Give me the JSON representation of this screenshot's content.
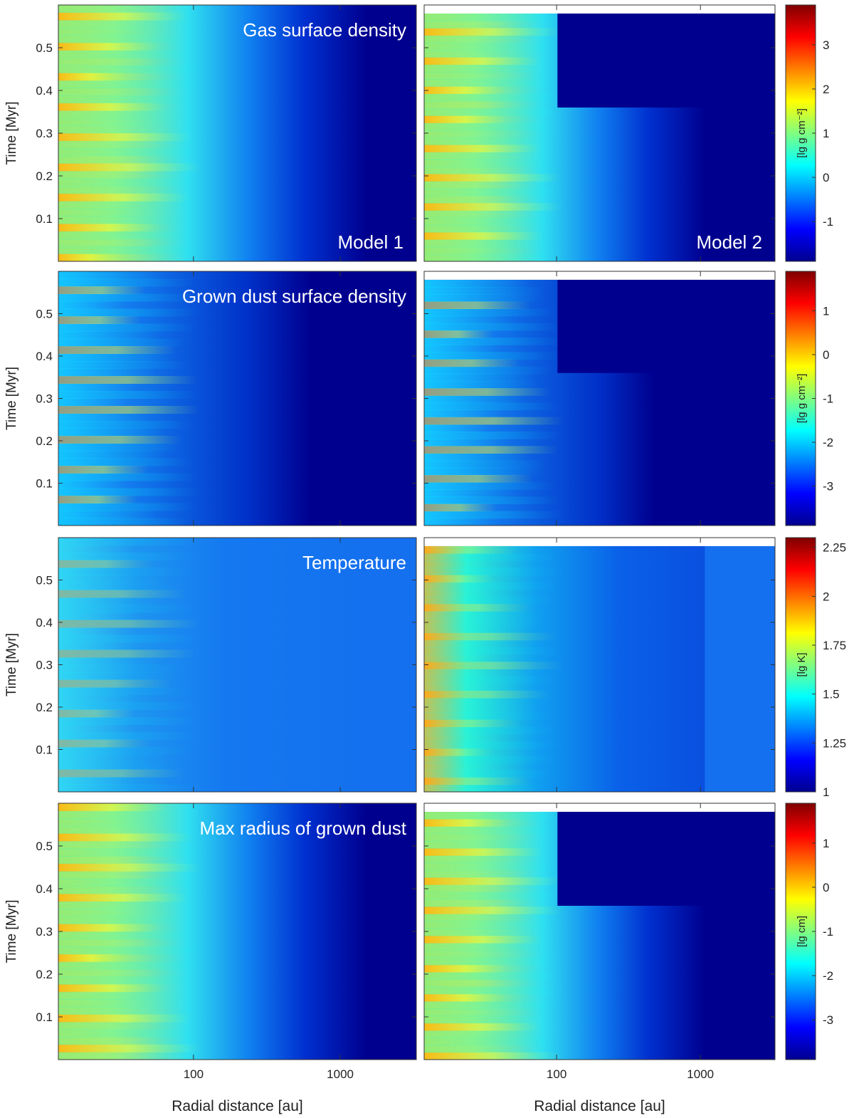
{
  "figure": {
    "xlabel": "Radial distance [au]",
    "ylabel": "Time [Myr]",
    "x_ticks": [
      "100",
      "1000"
    ],
    "y_ticks": [
      "0.1",
      "0.2",
      "0.3",
      "0.4",
      "0.5"
    ],
    "model_labels": [
      "Model 1",
      "Model 2"
    ]
  },
  "chart_data": [
    {
      "type": "heatmap",
      "title": "Gas surface density",
      "colorbar_label": "[lg g cm⁻²]",
      "colorbar_range": [
        -1.9,
        3.9
      ],
      "colorbar_ticks": [
        "-1",
        "0",
        "1",
        "2",
        "3"
      ],
      "colorbar_tick_values": [
        -1,
        0,
        1,
        2,
        3
      ],
      "xscale": "log",
      "xlim": [
        12,
        3300
      ],
      "ylim": [
        0.0,
        0.6
      ],
      "model_end_time": [
        0.6,
        0.58
      ]
    },
    {
      "type": "heatmap",
      "title": "Grown dust surface density",
      "colorbar_label": "[lg g cm⁻²]",
      "colorbar_range": [
        -3.9,
        1.9
      ],
      "colorbar_ticks": [
        "-3",
        "-2",
        "-1",
        "0",
        "1"
      ],
      "colorbar_tick_values": [
        -3,
        -2,
        -1,
        0,
        1
      ],
      "xscale": "log",
      "xlim": [
        12,
        3300
      ],
      "ylim": [
        0.0,
        0.6
      ],
      "model_end_time": [
        0.6,
        0.58
      ]
    },
    {
      "type": "heatmap",
      "title": "Temperature",
      "colorbar_label": "[lg K]",
      "colorbar_range": [
        1.0,
        2.3
      ],
      "colorbar_ticks": [
        "1",
        "1.25",
        "1.5",
        "1.75",
        "2",
        "2.25"
      ],
      "colorbar_tick_values": [
        1,
        1.25,
        1.5,
        1.75,
        2,
        2.25
      ],
      "xscale": "log",
      "xlim": [
        12,
        3300
      ],
      "ylim": [
        0.0,
        0.6
      ],
      "model_end_time": [
        0.6,
        0.58
      ]
    },
    {
      "type": "heatmap",
      "title": "Max radius of grown dust",
      "colorbar_label": "[lg cm]",
      "colorbar_range": [
        -3.9,
        1.9
      ],
      "colorbar_ticks": [
        "-3",
        "-2",
        "-1",
        "0",
        "1"
      ],
      "colorbar_tick_values": [
        -3,
        -2,
        -1,
        0,
        1
      ],
      "xscale": "log",
      "xlim": [
        12,
        3300
      ],
      "ylim": [
        0.0,
        0.6
      ],
      "model_end_time": [
        0.6,
        0.58
      ]
    }
  ],
  "colors": {
    "jet": [
      "#00008f",
      "#0000ff",
      "#0080ff",
      "#00ffff",
      "#80ff80",
      "#ffff00",
      "#ff8000",
      "#ff0000",
      "#800000"
    ],
    "background_dark": "#00008f",
    "axis": "#333333"
  }
}
